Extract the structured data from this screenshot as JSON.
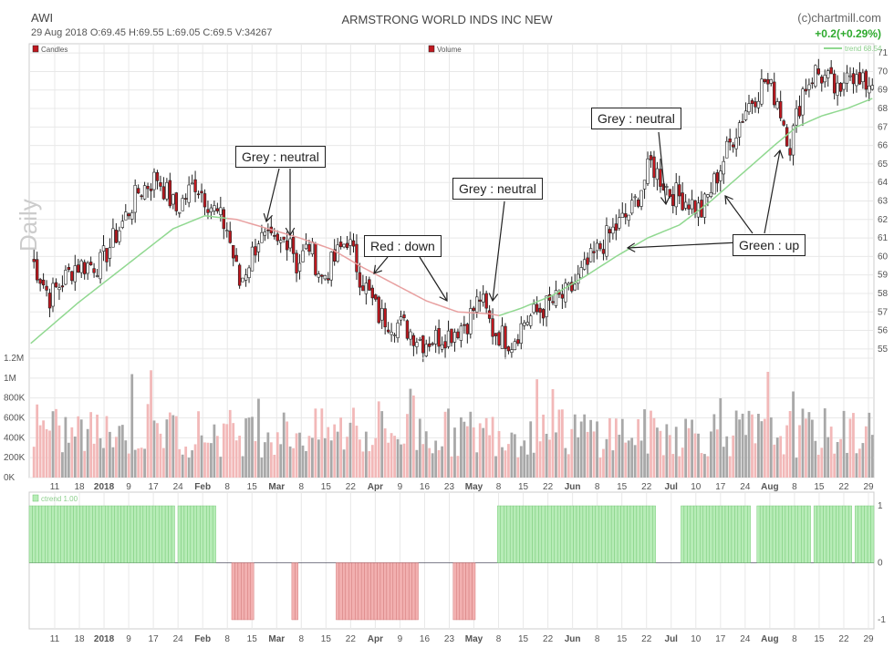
{
  "header": {
    "ticker": "AWI",
    "date_ohlc": "29 Aug 2018   O:69.45  H:69.55  L:69.05  C:69.5    V:34267",
    "title": "ARMSTRONG WORLD INDS INC NEW",
    "brand": "(c)chartmill.com",
    "change": "+0.2(+0.29%)"
  },
  "colors": {
    "up": "#ffffff",
    "down": "#c0181f",
    "candle_stroke": "#222222",
    "trend_line_up": "#90d890",
    "trend_line_down": "#e8a0a0",
    "vol_up": "#a8a8a8",
    "vol_down": "#f2b8b8",
    "ind_up": "#b7ecb7",
    "ind_up_stroke": "#6cc46c",
    "ind_down": "#f2b0b0",
    "ind_down_stroke": "#cc7070",
    "grid": "#e8e8e8"
  },
  "chart_data": [
    {
      "type": "candlestick",
      "legend": "Candles",
      "vertical_label": "Daily",
      "trend_label": "trend 68.54",
      "ylim": [
        54.5,
        71.5
      ],
      "y_ticks": [
        55,
        56,
        57,
        58,
        59,
        60,
        61,
        62,
        63,
        64,
        65,
        66,
        67,
        68,
        69,
        70,
        71
      ],
      "x_tick_labels": [
        "11",
        "18",
        "2018",
        "9",
        "17",
        "24",
        "Feb",
        "8",
        "15",
        "Mar",
        "8",
        "15",
        "22",
        "Apr",
        "9",
        "16",
        "23",
        "May",
        "8",
        "15",
        "22",
        "Jun",
        "8",
        "15",
        "22",
        "Jul",
        "10",
        "17",
        "24",
        "Aug",
        "8",
        "15",
        "22",
        "29"
      ],
      "close_path": [
        [
          0,
          60.0
        ],
        [
          6,
          57.8
        ],
        [
          14,
          59.5
        ],
        [
          22,
          59.6
        ],
        [
          28,
          61.5
        ],
        [
          34,
          63.5
        ],
        [
          40,
          64.3
        ],
        [
          46,
          62.5
        ],
        [
          52,
          64.0
        ],
        [
          58,
          62.5
        ],
        [
          62,
          61.5
        ],
        [
          66,
          58.5
        ],
        [
          72,
          61.0
        ],
        [
          78,
          60.5
        ],
        [
          82,
          61.2
        ],
        [
          84,
          59.5
        ],
        [
          88,
          60.6
        ],
        [
          92,
          58.8
        ],
        [
          96,
          59.8
        ],
        [
          100,
          61.0
        ],
        [
          104,
          59.0
        ],
        [
          110,
          56.8
        ],
        [
          118,
          56.2
        ],
        [
          124,
          55.4
        ],
        [
          132,
          55.8
        ],
        [
          138,
          56.5
        ],
        [
          142,
          57.8
        ],
        [
          146,
          56.0
        ],
        [
          152,
          55.4
        ],
        [
          156,
          56.5
        ],
        [
          162,
          57.2
        ],
        [
          170,
          58.0
        ],
        [
          176,
          59.5
        ],
        [
          182,
          61.0
        ],
        [
          190,
          62.5
        ],
        [
          196,
          65.0
        ],
        [
          202,
          63.5
        ],
        [
          208,
          63.0
        ],
        [
          212,
          62.4
        ],
        [
          216,
          64.0
        ],
        [
          222,
          66.5
        ],
        [
          226,
          68.0
        ],
        [
          232,
          69.5
        ],
        [
          236,
          68.5
        ],
        [
          240,
          66.0
        ],
        [
          244,
          69.0
        ],
        [
          248,
          70.0
        ],
        [
          252,
          69.5
        ],
        [
          256,
          68.5
        ],
        [
          258,
          70.5
        ],
        [
          262,
          69.2
        ],
        [
          266,
          69.5
        ]
      ],
      "trend_line_ma": [
        [
          0,
          55.3
        ],
        [
          15,
          57.5
        ],
        [
          30,
          59.5
        ],
        [
          45,
          61.5
        ],
        [
          55,
          62.2
        ],
        [
          65,
          62.0
        ],
        [
          75,
          61.5
        ],
        [
          85,
          61.0
        ],
        [
          95,
          60.4
        ],
        [
          105,
          59.4
        ],
        [
          115,
          58.5
        ],
        [
          125,
          57.6
        ],
        [
          135,
          57.0
        ],
        [
          145,
          56.9
        ],
        [
          148,
          56.8
        ],
        [
          155,
          57.2
        ],
        [
          165,
          57.9
        ],
        [
          175,
          58.9
        ],
        [
          185,
          60.0
        ],
        [
          195,
          61.0
        ],
        [
          205,
          61.7
        ],
        [
          215,
          63.0
        ],
        [
          225,
          64.5
        ],
        [
          235,
          66.0
        ],
        [
          242,
          67.0
        ],
        [
          250,
          67.6
        ],
        [
          258,
          68.0
        ],
        [
          266,
          68.54
        ]
      ],
      "trend_line_colors_by_segment": [
        {
          "from": 0,
          "to": 62,
          "color": "up"
        },
        {
          "from": 62,
          "to": 148,
          "color": "down"
        },
        {
          "from": 148,
          "to": 266,
          "color": "up"
        }
      ]
    },
    {
      "type": "bar",
      "legend": "Volume",
      "ylim": [
        0,
        1200000
      ],
      "y_tick_labels": [
        "0K",
        "200K",
        "400K",
        "600K",
        "800K",
        "1M",
        "1.2M"
      ],
      "y_tick_values": [
        0,
        200000,
        400000,
        600000,
        800000,
        1000000,
        1200000
      ]
    },
    {
      "type": "bar",
      "legend": "ctrend 1.00",
      "ylim": [
        -1,
        1
      ],
      "y_tick_labels": [
        "1",
        "0",
        "-1"
      ],
      "y_tick_values": [
        1,
        0,
        -1
      ],
      "x_tick_labels": [
        "11",
        "18",
        "2018",
        "9",
        "17",
        "24",
        "Feb",
        "8",
        "15",
        "Mar",
        "8",
        "15",
        "22",
        "Apr",
        "9",
        "16",
        "23",
        "May",
        "8",
        "15",
        "22",
        "Jun",
        "8",
        "15",
        "22",
        "Jul",
        "10",
        "17",
        "24",
        "Aug",
        "8",
        "15",
        "22",
        "29"
      ],
      "trend_segments": [
        {
          "from": 0,
          "to": 45,
          "value": 1
        },
        {
          "from": 47,
          "to": 58,
          "value": 1
        },
        {
          "from": 64,
          "to": 70,
          "value": -1
        },
        {
          "from": 83,
          "to": 84,
          "value": -1
        },
        {
          "from": 97,
          "to": 122,
          "value": -1
        },
        {
          "from": 134,
          "to": 140,
          "value": -1
        },
        {
          "from": 148,
          "to": 197,
          "value": 1
        },
        {
          "from": 206,
          "to": 227,
          "value": 1
        },
        {
          "from": 230,
          "to": 246,
          "value": 1
        },
        {
          "from": 248,
          "to": 259,
          "value": 1
        },
        {
          "from": 261,
          "to": 266,
          "value": 1
        }
      ]
    }
  ],
  "annotations": [
    {
      "id": "grey1",
      "text": "Grey : neutral"
    },
    {
      "id": "red1",
      "text": "Red : down"
    },
    {
      "id": "grey2",
      "text": "Grey : neutral"
    },
    {
      "id": "grey3",
      "text": "Grey : neutral"
    },
    {
      "id": "green1",
      "text": "Green : up"
    }
  ]
}
